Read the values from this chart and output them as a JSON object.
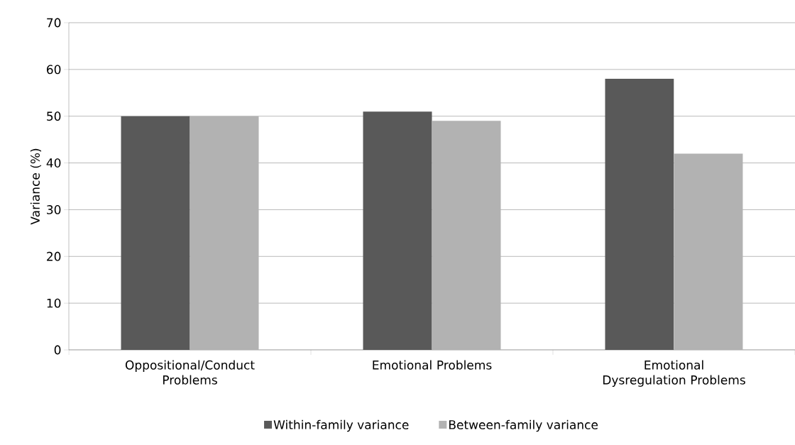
{
  "chart_data": {
    "type": "bar",
    "ylabel": "Variance (%)",
    "categories": [
      "Oppositional/Conduct Problems",
      "Emotional Problems",
      "Emotional Dysregulation Problems"
    ],
    "series": [
      {
        "name": "Within-family variance",
        "color": "#595959",
        "values": [
          50,
          51,
          58
        ]
      },
      {
        "name": "Between-family variance",
        "color": "#b2b2b2",
        "values": [
          50,
          49,
          42
        ]
      }
    ],
    "ylim": [
      0,
      70
    ],
    "yticks": [
      0,
      10,
      20,
      30,
      40,
      50,
      60,
      70
    ],
    "grid": "y",
    "legend": "bottom"
  }
}
